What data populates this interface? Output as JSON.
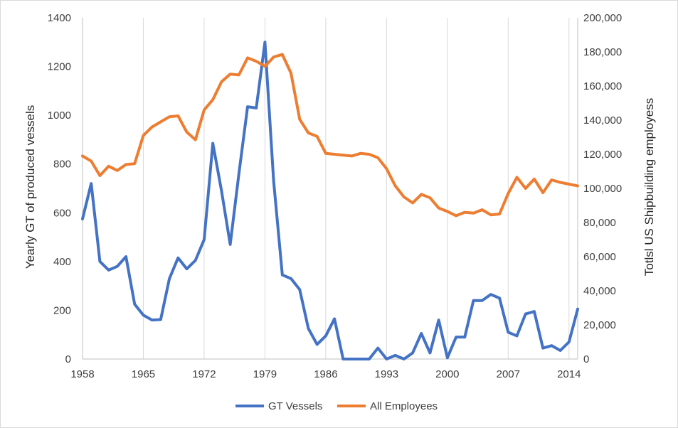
{
  "chart_data": {
    "type": "line",
    "title": "",
    "xlabel": "",
    "ylabel_left": "Yearly GT of produced vessels",
    "ylabel_right": "Totlsl US Shipbuilding employess",
    "xlim": [
      1958,
      2015
    ],
    "ylim_left": [
      0,
      1400
    ],
    "ylim_right": [
      0,
      200000
    ],
    "x_ticks": [
      1958,
      1965,
      1972,
      1979,
      1986,
      1993,
      2000,
      2007,
      2014
    ],
    "y_left_ticks": [
      "0",
      "200",
      "400",
      "600",
      "800",
      "1000",
      "1200",
      "1400"
    ],
    "y_right_ticks": [
      "0",
      "20,000",
      "40,000",
      "60,000",
      "80,000",
      "100,000",
      "120,000",
      "140,000",
      "160,000",
      "180,000",
      "200,000"
    ],
    "grid": "vertical",
    "legend_position": "bottom",
    "x": [
      1958,
      1959,
      1960,
      1961,
      1962,
      1963,
      1964,
      1965,
      1966,
      1967,
      1968,
      1969,
      1970,
      1971,
      1972,
      1973,
      1974,
      1975,
      1976,
      1977,
      1978,
      1979,
      1980,
      1981,
      1982,
      1983,
      1984,
      1985,
      1986,
      1987,
      1988,
      1989,
      1990,
      1991,
      1992,
      1993,
      1994,
      1995,
      1996,
      1997,
      1998,
      1999,
      2000,
      2001,
      2002,
      2003,
      2004,
      2005,
      2006,
      2007,
      2008,
      2009,
      2010,
      2011,
      2012,
      2013,
      2014,
      2015
    ],
    "series": [
      {
        "name": "GT Vessels",
        "axis": "left",
        "color": "#4472c4",
        "values": [
          575,
          720,
          400,
          365,
          380,
          420,
          225,
          180,
          160,
          162,
          330,
          415,
          370,
          405,
          490,
          885,
          690,
          470,
          760,
          1035,
          1030,
          1300,
          730,
          345,
          330,
          285,
          125,
          60,
          95,
          165,
          0,
          0,
          0,
          0,
          45,
          0,
          15,
          0,
          25,
          105,
          25,
          160,
          5,
          90,
          90,
          240,
          240,
          265,
          250,
          110,
          95,
          185,
          195,
          45,
          55,
          35,
          70,
          205
        ]
      },
      {
        "name": "All Employees",
        "axis": "right",
        "color": "#ed7d31",
        "values": [
          119000,
          116000,
          107500,
          113000,
          110500,
          114000,
          114500,
          131000,
          136000,
          139000,
          142000,
          142500,
          133000,
          128500,
          146000,
          152000,
          162500,
          167000,
          166500,
          176500,
          174500,
          171500,
          177000,
          178500,
          167500,
          140500,
          132500,
          130500,
          120500,
          120000,
          119500,
          119000,
          120500,
          120000,
          118000,
          111500,
          101500,
          95000,
          91500,
          96500,
          94500,
          88500,
          86500,
          84000,
          86000,
          85500,
          87500,
          84500,
          85000,
          97000,
          106500,
          100000,
          105500,
          97500,
          105000,
          103500,
          102500,
          101500
        ]
      }
    ]
  }
}
